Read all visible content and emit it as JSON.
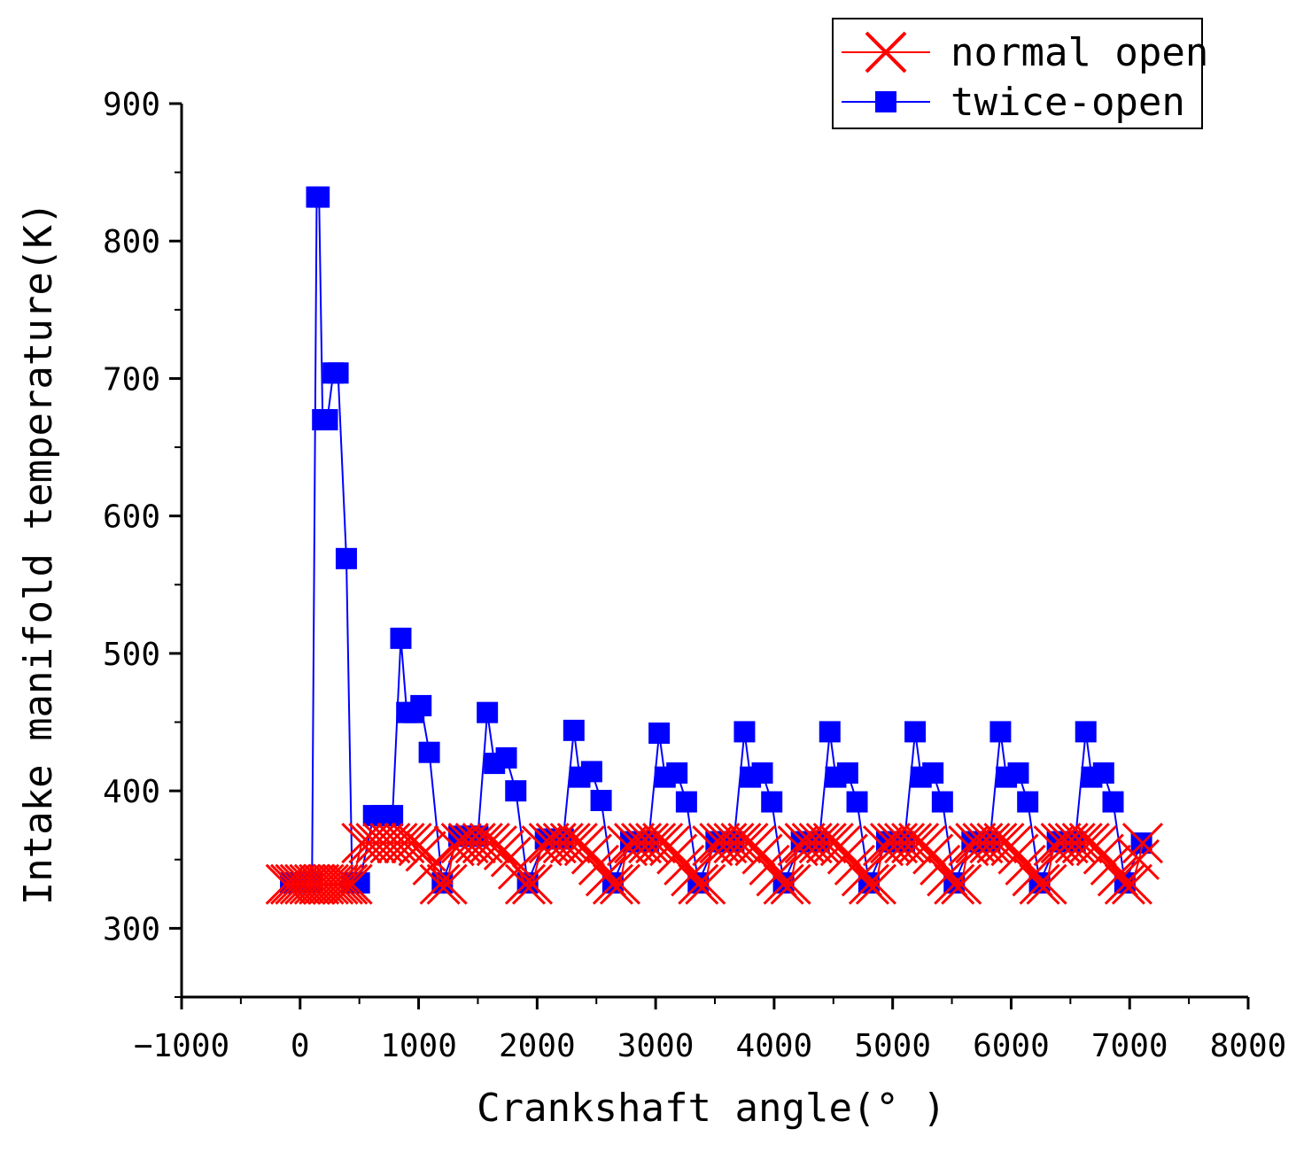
{
  "chart_data": {
    "type": "line",
    "xlabel": "Crankshaft angle(° )",
    "ylabel": "Intake manifold temperature(K)",
    "xlim": [
      -1000,
      8000
    ],
    "ylim": [
      250,
      900
    ],
    "xticks": [
      -1000,
      0,
      1000,
      2000,
      3000,
      4000,
      5000,
      6000,
      7000,
      8000
    ],
    "xtick_labels": [
      "−1000",
      "0",
      "1000",
      "2000",
      "3000",
      "4000",
      "5000",
      "6000",
      "7000",
      "8000"
    ],
    "yticks": [
      300,
      400,
      500,
      600,
      700,
      800,
      900
    ],
    "ytick_labels": [
      "300",
      "400",
      "500",
      "600",
      "700",
      "800",
      "900"
    ],
    "legend": {
      "position": "top-right"
    },
    "series": [
      {
        "name": "normal open",
        "color": "#ff0000",
        "marker": "x",
        "points": [
          [
            -120,
            332
          ],
          [
            -80,
            332
          ],
          [
            -40,
            332
          ],
          [
            0,
            332
          ],
          [
            40,
            332
          ],
          [
            80,
            332
          ],
          [
            120,
            332
          ],
          [
            160,
            332
          ],
          [
            200,
            332
          ],
          [
            240,
            332
          ],
          [
            280,
            332
          ],
          [
            320,
            332
          ],
          [
            360,
            332
          ],
          [
            400,
            332
          ],
          [
            440,
            332
          ],
          [
            520,
            362
          ],
          [
            580,
            362
          ],
          [
            640,
            362
          ],
          [
            700,
            362
          ],
          [
            760,
            362
          ],
          [
            820,
            362
          ],
          [
            880,
            362
          ],
          [
            940,
            362
          ],
          [
            1000,
            360
          ],
          [
            1060,
            356
          ],
          [
            1120,
            346
          ],
          [
            1180,
            332
          ],
          [
            1240,
            332
          ],
          [
            1300,
            360
          ],
          [
            1360,
            362
          ],
          [
            1420,
            362
          ],
          [
            1480,
            362
          ],
          [
            1540,
            362
          ],
          [
            1600,
            362
          ],
          [
            1660,
            360
          ],
          [
            1720,
            357
          ],
          [
            1780,
            352
          ],
          [
            1840,
            343
          ],
          [
            1900,
            332
          ],
          [
            1960,
            332
          ],
          [
            2040,
            360
          ],
          [
            2100,
            362
          ],
          [
            2160,
            362
          ],
          [
            2220,
            362
          ],
          [
            2280,
            362
          ],
          [
            2340,
            362
          ],
          [
            2400,
            360
          ],
          [
            2460,
            354
          ],
          [
            2520,
            346
          ],
          [
            2580,
            338
          ],
          [
            2640,
            332
          ],
          [
            2700,
            332
          ],
          [
            2760,
            360
          ],
          [
            2820,
            362
          ],
          [
            2880,
            362
          ],
          [
            2940,
            362
          ],
          [
            3000,
            362
          ],
          [
            3060,
            362
          ],
          [
            3120,
            360
          ],
          [
            3180,
            354
          ],
          [
            3240,
            346
          ],
          [
            3300,
            338
          ],
          [
            3360,
            332
          ],
          [
            3420,
            332
          ],
          [
            3480,
            360
          ],
          [
            3540,
            362
          ],
          [
            3600,
            362
          ],
          [
            3660,
            362
          ],
          [
            3720,
            362
          ],
          [
            3780,
            362
          ],
          [
            3840,
            360
          ],
          [
            3900,
            354
          ],
          [
            3960,
            346
          ],
          [
            4020,
            338
          ],
          [
            4080,
            332
          ],
          [
            4140,
            332
          ],
          [
            4200,
            360
          ],
          [
            4260,
            362
          ],
          [
            4320,
            362
          ],
          [
            4380,
            362
          ],
          [
            4440,
            362
          ],
          [
            4500,
            362
          ],
          [
            4560,
            360
          ],
          [
            4620,
            354
          ],
          [
            4680,
            346
          ],
          [
            4740,
            338
          ],
          [
            4800,
            332
          ],
          [
            4860,
            332
          ],
          [
            4920,
            360
          ],
          [
            4980,
            362
          ],
          [
            5040,
            362
          ],
          [
            5100,
            362
          ],
          [
            5160,
            362
          ],
          [
            5220,
            362
          ],
          [
            5280,
            360
          ],
          [
            5340,
            354
          ],
          [
            5400,
            346
          ],
          [
            5460,
            338
          ],
          [
            5520,
            332
          ],
          [
            5580,
            332
          ],
          [
            5640,
            360
          ],
          [
            5700,
            362
          ],
          [
            5760,
            362
          ],
          [
            5820,
            362
          ],
          [
            5880,
            362
          ],
          [
            5940,
            362
          ],
          [
            6000,
            360
          ],
          [
            6060,
            354
          ],
          [
            6120,
            346
          ],
          [
            6180,
            338
          ],
          [
            6240,
            332
          ],
          [
            6300,
            332
          ],
          [
            6360,
            360
          ],
          [
            6420,
            362
          ],
          [
            6480,
            362
          ],
          [
            6540,
            362
          ],
          [
            6600,
            362
          ],
          [
            6660,
            362
          ],
          [
            6720,
            360
          ],
          [
            6780,
            354
          ],
          [
            6840,
            346
          ],
          [
            6900,
            338
          ],
          [
            6960,
            332
          ],
          [
            7020,
            332
          ],
          [
            7080,
            350
          ],
          [
            7110,
            362
          ]
        ]
      },
      {
        "name": "twice-open",
        "color": "#0000ff",
        "marker": "square",
        "points": [
          [
            -80,
            333
          ],
          [
            -20,
            333
          ],
          [
            40,
            333
          ],
          [
            100,
            333
          ],
          [
            140,
            832
          ],
          [
            160,
            832
          ],
          [
            190,
            670
          ],
          [
            230,
            670
          ],
          [
            280,
            704
          ],
          [
            320,
            704
          ],
          [
            390,
            569
          ],
          [
            440,
            333
          ],
          [
            500,
            333
          ],
          [
            620,
            382
          ],
          [
            700,
            382
          ],
          [
            780,
            382
          ],
          [
            850,
            511
          ],
          [
            900,
            457
          ],
          [
            960,
            457
          ],
          [
            1020,
            462
          ],
          [
            1090,
            428
          ],
          [
            1200,
            333
          ],
          [
            1340,
            367
          ],
          [
            1420,
            367
          ],
          [
            1500,
            367
          ],
          [
            1580,
            457
          ],
          [
            1640,
            420
          ],
          [
            1740,
            424
          ],
          [
            1820,
            400
          ],
          [
            1920,
            333
          ],
          [
            2070,
            365
          ],
          [
            2140,
            365
          ],
          [
            2220,
            365
          ],
          [
            2310,
            444
          ],
          [
            2360,
            410
          ],
          [
            2460,
            414
          ],
          [
            2540,
            393
          ],
          [
            2640,
            333
          ],
          [
            2790,
            363
          ],
          [
            2860,
            363
          ],
          [
            2940,
            363
          ],
          [
            3030,
            442
          ],
          [
            3080,
            410
          ],
          [
            3180,
            413
          ],
          [
            3260,
            392
          ],
          [
            3360,
            333
          ],
          [
            3510,
            363
          ],
          [
            3580,
            363
          ],
          [
            3660,
            363
          ],
          [
            3750,
            443
          ],
          [
            3800,
            410
          ],
          [
            3900,
            413
          ],
          [
            3980,
            392
          ],
          [
            4080,
            333
          ],
          [
            4230,
            363
          ],
          [
            4300,
            363
          ],
          [
            4380,
            363
          ],
          [
            4470,
            443
          ],
          [
            4520,
            410
          ],
          [
            4620,
            413
          ],
          [
            4700,
            392
          ],
          [
            4800,
            333
          ],
          [
            4950,
            363
          ],
          [
            5020,
            363
          ],
          [
            5100,
            363
          ],
          [
            5190,
            443
          ],
          [
            5240,
            410
          ],
          [
            5340,
            413
          ],
          [
            5420,
            392
          ],
          [
            5520,
            333
          ],
          [
            5670,
            363
          ],
          [
            5740,
            363
          ],
          [
            5820,
            363
          ],
          [
            5910,
            443
          ],
          [
            5960,
            410
          ],
          [
            6060,
            413
          ],
          [
            6140,
            392
          ],
          [
            6240,
            333
          ],
          [
            6390,
            363
          ],
          [
            6460,
            363
          ],
          [
            6540,
            363
          ],
          [
            6630,
            443
          ],
          [
            6680,
            410
          ],
          [
            6780,
            413
          ],
          [
            6860,
            392
          ],
          [
            6960,
            333
          ],
          [
            7100,
            362
          ]
        ]
      }
    ]
  }
}
